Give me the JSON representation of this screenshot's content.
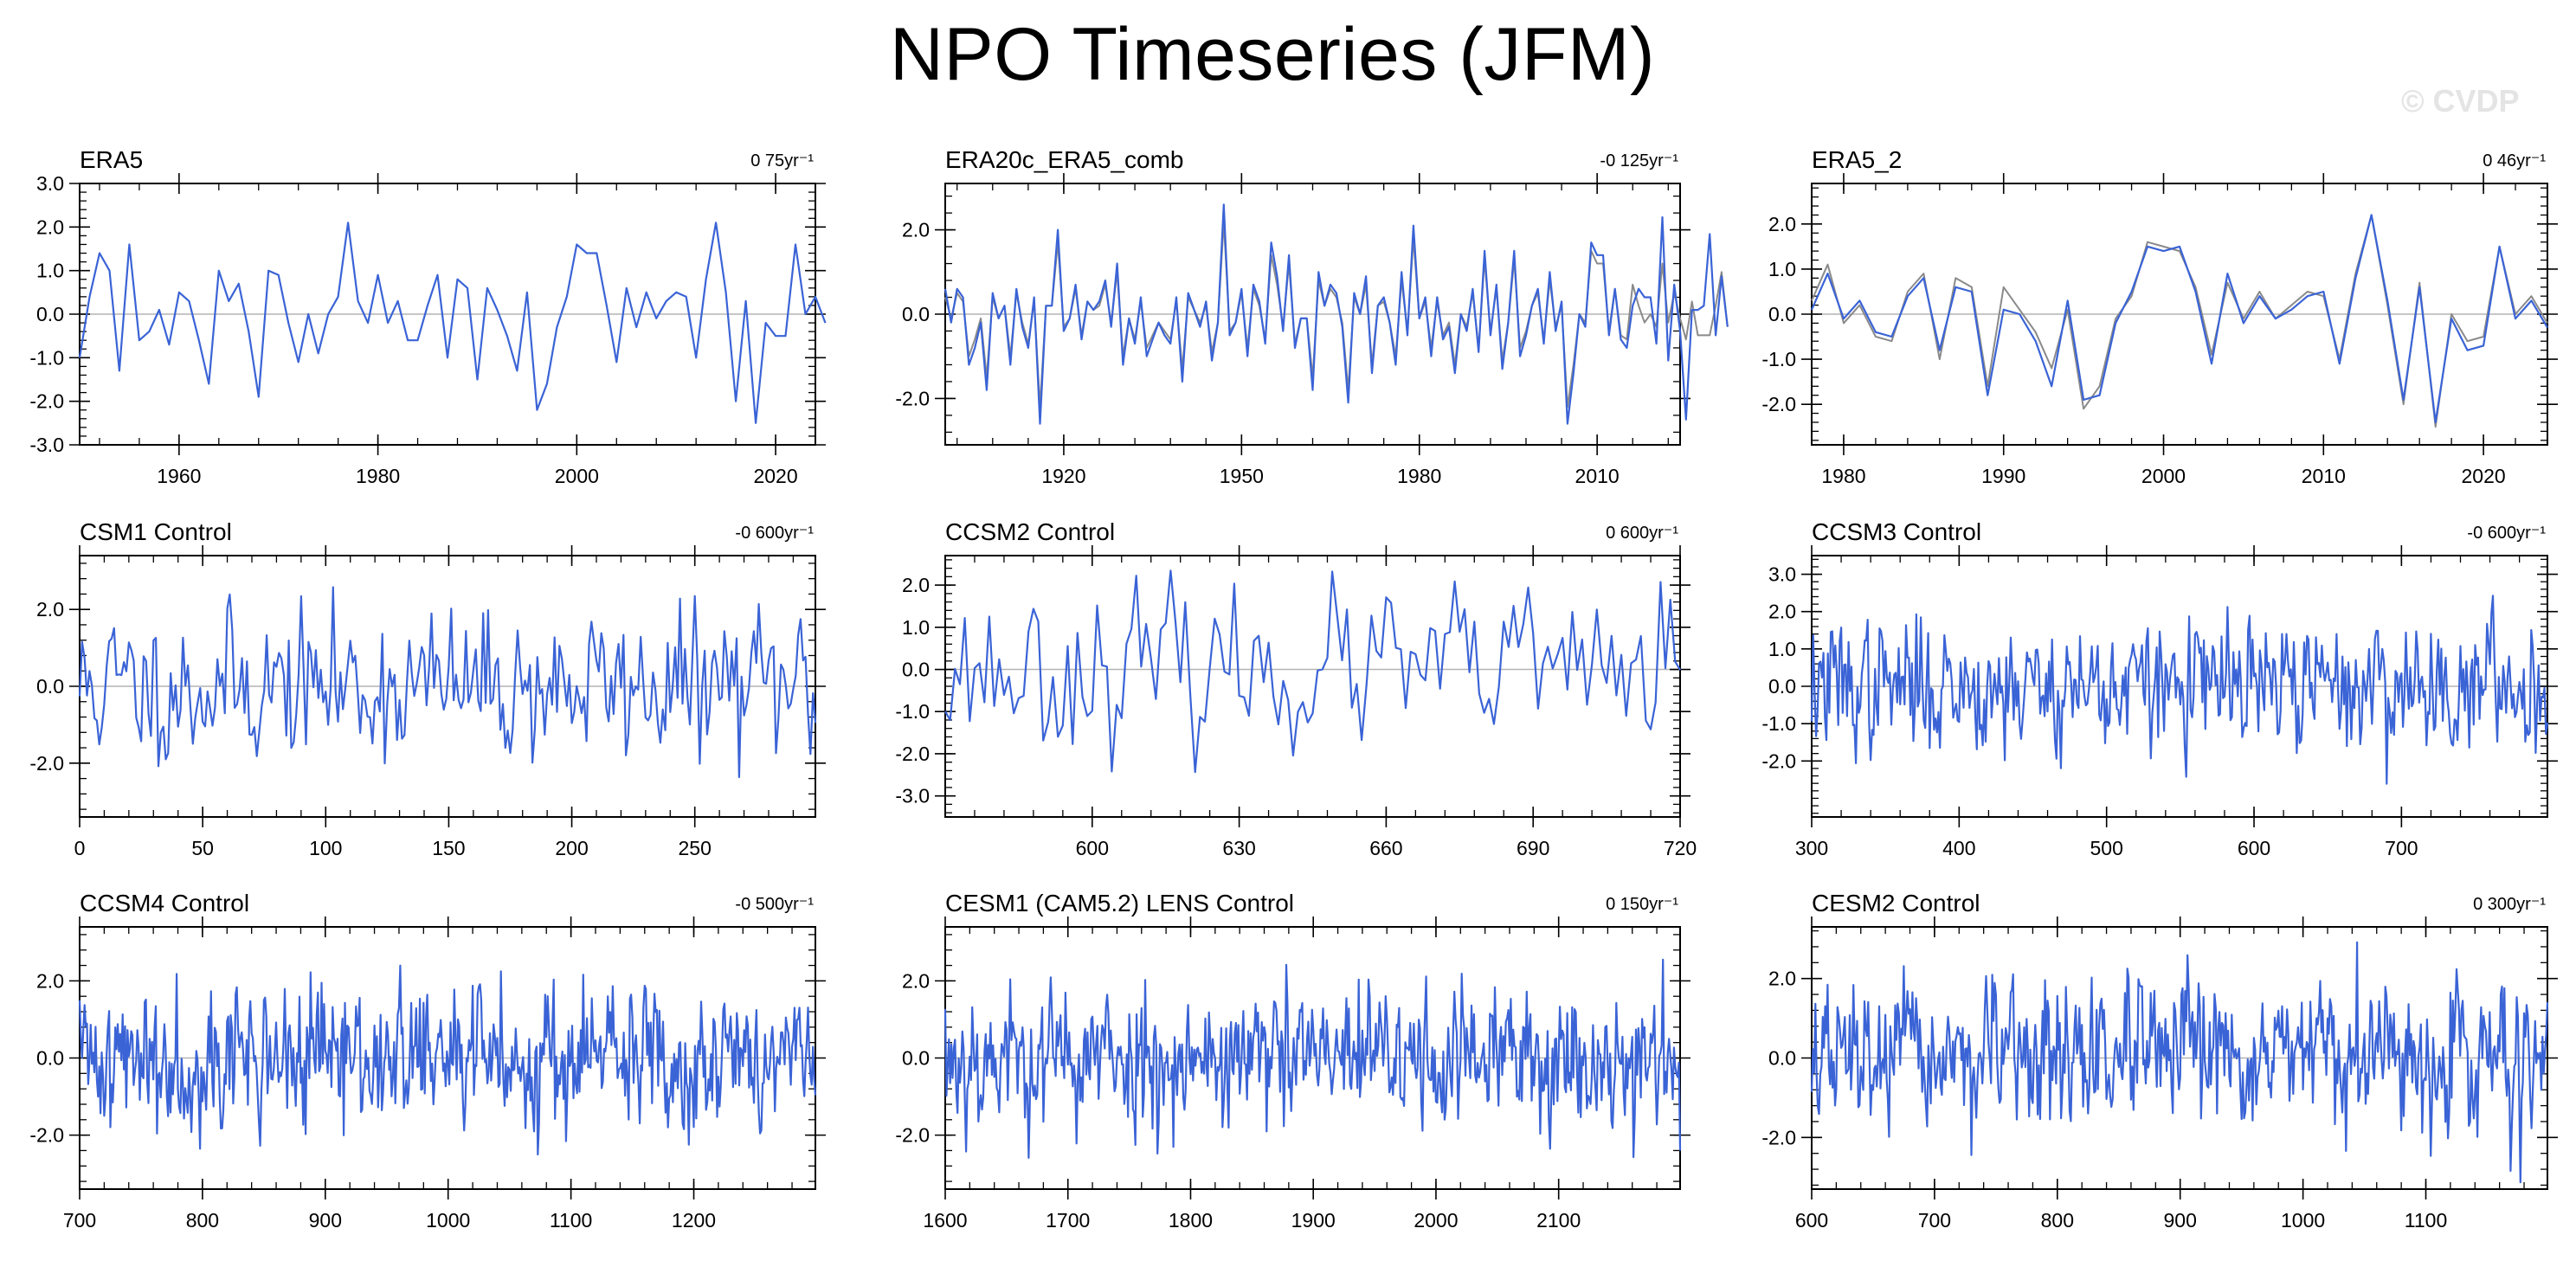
{
  "page": {
    "title": "NPO Timeseries (JFM)",
    "watermark": "© CVDP",
    "colors": {
      "main_series": "#3a63d6",
      "secondary_series": "#8a8a8a",
      "zero_line": "#b4b4b4",
      "axis": "#000000"
    }
  },
  "chart_data": [
    {
      "type": "line",
      "title": "ERA5",
      "trend_label": "0 75yr⁻¹",
      "xlim": [
        1950,
        2024
      ],
      "ylim": [
        -3.0,
        3.0
      ],
      "xticks": [
        1960,
        1980,
        2000,
        2020
      ],
      "xtick_labels": [
        "1960",
        "1980",
        "2000",
        "2020"
      ],
      "yticks": [
        -3,
        -2,
        -1,
        0,
        1,
        2,
        3
      ],
      "ytick_labels": [
        "-3.0",
        "-2.0",
        "-1.0",
        "0.0",
        "1.0",
        "2.0",
        "3.0"
      ],
      "x_start": 1950,
      "series": [
        {
          "role": "main",
          "values": [
            -1.0,
            0.4,
            1.4,
            1.0,
            -1.3,
            1.6,
            -0.6,
            -0.4,
            0.1,
            -0.7,
            0.5,
            0.3,
            -0.6,
            -1.6,
            1.0,
            0.3,
            0.7,
            -0.4,
            -1.9,
            1.0,
            0.9,
            -0.2,
            -1.1,
            0.0,
            -0.9,
            0.0,
            0.4,
            2.1,
            0.3,
            -0.2,
            0.9,
            -0.2,
            0.3,
            -0.6,
            -0.6,
            0.2,
            0.9,
            -1.0,
            0.8,
            0.6,
            -1.5,
            0.6,
            0.1,
            -0.5,
            -1.3,
            0.5,
            -2.2,
            -1.6,
            -0.3,
            0.4,
            1.6,
            1.4,
            1.4,
            0.2,
            -1.1,
            0.6,
            -0.3,
            0.5,
            -0.1,
            0.3,
            0.5,
            0.4,
            -1.0,
            0.8,
            2.1,
            0.5,
            -2.0,
            0.3,
            -2.5,
            -0.2,
            -0.5,
            -0.5,
            1.6,
            0.0,
            0.4,
            -0.2
          ]
        }
      ]
    },
    {
      "type": "line",
      "title": "ERA20c_ERA5_comb",
      "trend_label": "-0 125yr⁻¹",
      "xlim": [
        1900,
        2024
      ],
      "ylim": [
        -3.1,
        3.1
      ],
      "xticks": [
        1920,
        1950,
        1980,
        2010
      ],
      "xtick_labels": [
        "1920",
        "1950",
        "1980",
        "2010"
      ],
      "yticks": [
        -2,
        0,
        2
      ],
      "ytick_labels": [
        "-2.0",
        "0.0",
        "2.0"
      ],
      "x_start": 1900,
      "series": [
        {
          "role": "main",
          "values": [
            0.6,
            -0.2,
            0.6,
            0.4,
            -1.2,
            -0.8,
            -0.2,
            -1.8,
            0.5,
            -0.1,
            0.2,
            -1.2,
            0.6,
            -0.3,
            -0.8,
            0.4,
            -2.6,
            0.2,
            0.2,
            2.0,
            -0.4,
            -0.1,
            0.7,
            -0.6,
            0.3,
            0.1,
            0.3,
            0.8,
            -0.3,
            1.2,
            -1.2,
            -0.1,
            -0.7,
            0.4,
            -1.0,
            -0.6,
            -0.2,
            -0.5,
            -0.7,
            0.4,
            -1.6,
            0.5,
            0.1,
            -0.3,
            0.3,
            -1.1,
            -0.2,
            2.6,
            -0.5,
            -0.2,
            0.6,
            -1.0,
            0.7,
            0.3,
            -0.7,
            1.7,
            0.9,
            -0.4,
            1.4,
            -0.8,
            -0.1,
            -0.1,
            -1.8,
            1.0,
            0.2,
            0.7,
            0.5,
            -0.3,
            -2.1,
            0.5,
            0.0,
            0.9,
            -1.4,
            0.2,
            0.4,
            -0.2,
            -1.2,
            1.0,
            -0.5,
            2.1,
            -0.1,
            0.4,
            -1.0,
            0.4,
            -0.6,
            -0.3,
            -1.4,
            0.0,
            -0.4,
            0.6,
            -0.9,
            1.5,
            -0.5,
            0.7,
            -1.3,
            -0.2,
            1.5,
            -1.0,
            -0.5,
            0.2,
            0.6,
            -0.7,
            1.0,
            -0.4,
            0.3,
            -2.6,
            -1.4,
            0.0,
            -0.3,
            1.7,
            1.4,
            1.4,
            -0.5,
            0.6,
            -0.6,
            -0.8,
            0.2,
            0.6,
            0.4,
            0.4,
            -0.7,
            2.3,
            -1.1,
            0.7,
            -0.4,
            -2.5,
            0.1,
            0.1,
            0.2,
            1.9,
            -0.5,
            0.9,
            -0.3
          ]
        },
        {
          "role": "secondary",
          "values": [
            0.4,
            -0.1,
            0.5,
            0.3,
            -1.0,
            -0.6,
            -0.1,
            -1.5,
            0.4,
            -0.1,
            0.2,
            -1.0,
            0.5,
            -0.2,
            -0.7,
            0.3,
            -2.2,
            0.2,
            0.2,
            1.7,
            -0.3,
            -0.1,
            0.6,
            -0.5,
            0.3,
            0.1,
            0.2,
            0.7,
            -0.2,
            1.0,
            -1.0,
            -0.1,
            -0.6,
            0.3,
            -0.8,
            -0.5,
            -0.2,
            -0.4,
            -0.6,
            0.3,
            -1.3,
            0.4,
            0.1,
            -0.2,
            0.2,
            -0.9,
            -0.2,
            2.2,
            -0.4,
            -0.2,
            0.5,
            -0.8,
            0.6,
            0.2,
            -0.6,
            1.4,
            0.7,
            -0.3,
            1.2,
            -0.7,
            -0.1,
            -0.1,
            -1.5,
            0.8,
            0.2,
            0.6,
            0.4,
            -0.2,
            -1.8,
            0.4,
            0.0,
            0.7,
            -1.2,
            0.2,
            0.3,
            -0.2,
            -1.0,
            0.8,
            -0.4,
            1.8,
            -0.1,
            0.3,
            -0.8,
            0.3,
            -0.5,
            -0.2,
            -1.2,
            0.0,
            -0.3,
            0.5,
            -0.8,
            1.3,
            -0.4,
            0.6,
            -1.1,
            -0.2,
            1.3,
            -0.8,
            -0.4,
            0.2,
            0.5,
            -0.6,
            0.8,
            -0.3,
            0.2,
            -2.2,
            -1.2,
            0.0,
            -0.2,
            1.5,
            1.2,
            1.2,
            -0.4,
            0.6,
            -0.5,
            -0.6,
            0.7,
            0.2,
            -0.2,
            0.0,
            -0.3,
            1.2,
            -0.2,
            0.5,
            -0.1,
            -0.6,
            0.3,
            -0.5,
            -0.5,
            -0.5,
            0.2,
            1.0,
            -0.3
          ]
        }
      ]
    },
    {
      "type": "line",
      "title": "ERA5_2",
      "trend_label": "0 46yr⁻¹",
      "xlim": [
        1978,
        2024
      ],
      "ylim": [
        -2.9,
        2.9
      ],
      "xticks": [
        1980,
        1990,
        2000,
        2010,
        2020
      ],
      "xtick_labels": [
        "1980",
        "1990",
        "2000",
        "2010",
        "2020"
      ],
      "yticks": [
        -2,
        -1,
        0,
        1,
        2
      ],
      "ytick_labels": [
        "-2.0",
        "-1.0",
        "0.0",
        "1.0",
        "2.0"
      ],
      "x_start": 1978,
      "series": [
        {
          "role": "main",
          "values": [
            0.1,
            0.9,
            -0.1,
            0.3,
            -0.4,
            -0.5,
            0.4,
            0.8,
            -0.8,
            0.6,
            0.5,
            -1.8,
            0.1,
            0.0,
            -0.6,
            -1.6,
            0.3,
            -1.9,
            -1.8,
            -0.2,
            0.5,
            1.5,
            1.4,
            1.5,
            0.5,
            -1.1,
            0.9,
            -0.2,
            0.4,
            -0.1,
            0.1,
            0.4,
            0.5,
            -1.1,
            0.8,
            2.2,
            0.3,
            -1.9,
            0.6,
            -2.4,
            -0.1,
            -0.8,
            -0.7,
            1.5,
            -0.1,
            0.3,
            -0.3
          ]
        },
        {
          "role": "secondary",
          "values": [
            0.3,
            1.1,
            -0.2,
            0.2,
            -0.5,
            -0.6,
            0.5,
            0.9,
            -1.0,
            0.8,
            0.6,
            -1.6,
            0.6,
            0.1,
            -0.4,
            -1.2,
            0.1,
            -2.1,
            -1.6,
            -0.1,
            0.4,
            1.6,
            1.5,
            1.4,
            0.6,
            -0.9,
            0.7,
            -0.1,
            0.5,
            -0.1,
            0.2,
            0.5,
            0.4,
            -1.0,
            0.9,
            2.2,
            0.2,
            -2.0,
            0.7,
            -2.5,
            0.0,
            -0.6,
            -0.5,
            1.5,
            0.0,
            0.4,
            -0.2
          ]
        }
      ]
    },
    {
      "type": "line",
      "title": "CSM1 Control",
      "trend_label": "-0 600yr⁻¹",
      "xlim": [
        0,
        299
      ],
      "ylim": [
        -3.4,
        3.4
      ],
      "xticks": [
        0,
        50,
        100,
        150,
        200,
        250
      ],
      "xtick_labels": [
        "0",
        "50",
        "100",
        "150",
        "200",
        "250"
      ],
      "yticks": [
        -2,
        0,
        2
      ],
      "ytick_labels": [
        "-2.0",
        "0.0",
        "2.0"
      ],
      "generator": {
        "n": 300,
        "seed": 11,
        "amp": 0.95,
        "clip": 2.8
      }
    },
    {
      "type": "line",
      "title": "CCSM2 Control",
      "trend_label": "0 600yr⁻¹",
      "xlim": [
        570,
        720
      ],
      "ylim": [
        -3.5,
        2.7
      ],
      "xticks": [
        600,
        630,
        660,
        690,
        720
      ],
      "xtick_labels": [
        "600",
        "630",
        "660",
        "690",
        "720"
      ],
      "yticks": [
        -3,
        -2,
        -1,
        0,
        1,
        2
      ],
      "ytick_labels": [
        "-3.0",
        "-2.0",
        "-1.0",
        "0.0",
        "1.0",
        "2.0"
      ],
      "generator": {
        "n": 151,
        "seed": 23,
        "amp": 0.9,
        "clip": 3.0
      }
    },
    {
      "type": "line",
      "title": "CCSM3 Control",
      "trend_label": "-0 600yr⁻¹",
      "xlim": [
        300,
        799
      ],
      "ylim": [
        -3.5,
        3.5
      ],
      "xticks": [
        300,
        400,
        500,
        600,
        700
      ],
      "xtick_labels": [
        "300",
        "400",
        "500",
        "600",
        "700"
      ],
      "yticks": [
        -2,
        -1,
        0,
        1,
        2,
        3
      ],
      "ytick_labels": [
        "-2.0",
        "-1.0",
        "0.0",
        "1.0",
        "2.0",
        "3.0"
      ],
      "generator": {
        "n": 500,
        "seed": 37,
        "amp": 0.85,
        "clip": 2.8
      }
    },
    {
      "type": "line",
      "title": "CCSM4 Control",
      "trend_label": "-0 500yr⁻¹",
      "xlim": [
        700,
        1299
      ],
      "ylim": [
        -3.4,
        3.4
      ],
      "xticks": [
        700,
        800,
        900,
        1000,
        1100,
        1200
      ],
      "xtick_labels": [
        "700",
        "800",
        "900",
        "1000",
        "1100",
        "1200"
      ],
      "yticks": [
        -2,
        0,
        2
      ],
      "ytick_labels": [
        "-2.0",
        "0.0",
        "2.0"
      ],
      "generator": {
        "n": 600,
        "seed": 41,
        "amp": 0.9,
        "clip": 2.9
      }
    },
    {
      "type": "line",
      "title": "CESM1 (CAM5.2) LENS Control",
      "trend_label": "0 150yr⁻¹",
      "xlim": [
        1600,
        2199
      ],
      "ylim": [
        -3.4,
        3.4
      ],
      "xticks": [
        1600,
        1700,
        1800,
        1900,
        2000,
        2100
      ],
      "xtick_labels": [
        "1600",
        "1700",
        "1800",
        "1900",
        "2000",
        "2100"
      ],
      "yticks": [
        -2,
        0,
        2
      ],
      "ytick_labels": [
        "-2.0",
        "0.0",
        "2.0"
      ],
      "generator": {
        "n": 600,
        "seed": 53,
        "amp": 0.9,
        "clip": 3.0
      }
    },
    {
      "type": "line",
      "title": "CESM2 Control",
      "trend_label": "0 300yr⁻¹",
      "xlim": [
        600,
        1199
      ],
      "ylim": [
        -3.3,
        3.3
      ],
      "xticks": [
        600,
        700,
        800,
        900,
        1000,
        1100
      ],
      "xtick_labels": [
        "600",
        "700",
        "800",
        "900",
        "1000",
        "1100"
      ],
      "yticks": [
        -2,
        0,
        2
      ],
      "ytick_labels": [
        "-2.0",
        "0.0",
        "2.0"
      ],
      "generator": {
        "n": 600,
        "seed": 67,
        "amp": 0.85,
        "clip": 3.2
      }
    }
  ]
}
